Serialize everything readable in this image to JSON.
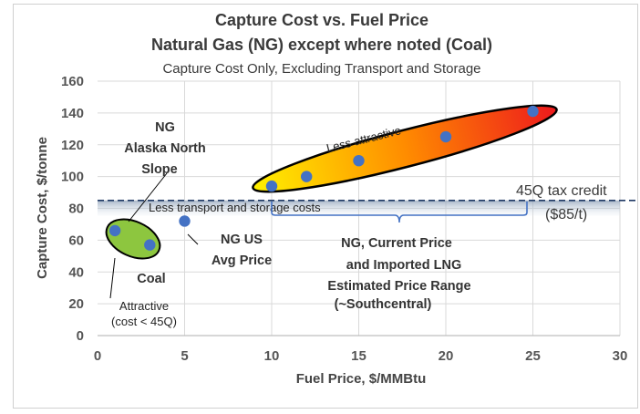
{
  "chart_data": {
    "type": "scatter",
    "title": "Capture Cost vs. Fuel Price",
    "title2": "Natural Gas (NG) except where noted (Coal)",
    "subtitle": "Capture Cost Only, Excluding Transport and Storage",
    "xlabel": "Fuel Price, $/MMBtu",
    "ylabel": "Capture Cost, $/tonne",
    "xlim": [
      0,
      30
    ],
    "ylim": [
      0,
      160
    ],
    "xticks": [
      0,
      5,
      10,
      15,
      20,
      25,
      30
    ],
    "yticks": [
      0,
      20,
      40,
      60,
      80,
      100,
      120,
      140,
      160
    ],
    "grid": true,
    "points": [
      {
        "x": 1,
        "y": 66
      },
      {
        "x": 3,
        "y": 57
      },
      {
        "x": 5,
        "y": 72
      },
      {
        "x": 10,
        "y": 94
      },
      {
        "x": 12,
        "y": 100
      },
      {
        "x": 15,
        "y": 110
      },
      {
        "x": 20,
        "y": 125
      },
      {
        "x": 25,
        "y": 141
      }
    ],
    "reference_line": {
      "y": 85,
      "label": "45Q tax credit",
      "label2": "($85/t)"
    },
    "band_label": "Less transport and storage costs",
    "annotations": {
      "less_attractive": "Less attractive",
      "ng_alaska": [
        "NG",
        "Alaska North",
        "Slope"
      ],
      "coal": "Coal",
      "attractive": [
        "Attractive",
        "(cost < 45Q)"
      ],
      "ng_us": [
        "NG US",
        "Avg Price"
      ],
      "ng_range": [
        "NG, Current Price",
        "and Imported LNG",
        "Estimated Price Range",
        "(~Southcentral)"
      ]
    },
    "colors": {
      "marker": "#4472C4",
      "reference": "#1f3864",
      "green_zone": "#8dc63f",
      "grid": "#d9d9d9"
    }
  }
}
